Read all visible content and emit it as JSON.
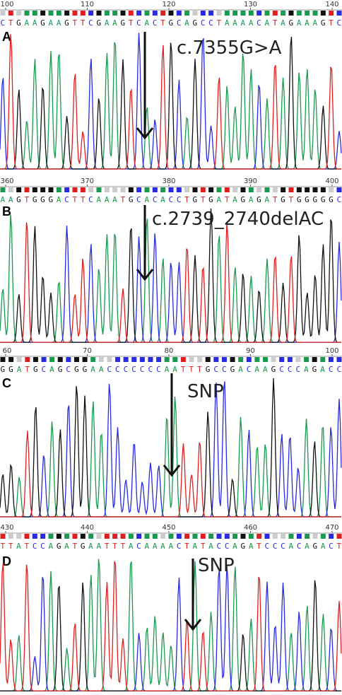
{
  "panels": [
    {
      "label": "A",
      "annotation": "c.7355G>A",
      "ruler_ticks": [
        100,
        110,
        120,
        130,
        140
      ],
      "sequence": "CTGAAGAAGTTCGAAGTCACTGCAGCCTAAAACATAGAAAGTC"
    },
    {
      "label": "B",
      "annotation": "c.2739_2740delAC",
      "ruler_ticks": [
        360,
        370,
        380,
        390,
        400
      ],
      "sequence": "AAGTGGGACTTCAAATGCACACCTGTGATAGAGATGTGGGGGC"
    },
    {
      "label": "C",
      "annotation": "SNP",
      "ruler_ticks": [
        60,
        70,
        80,
        90,
        100
      ],
      "sequence": "GGATGCAGCGGAACCCCCCCAATTTGCCGACAAGCCCAGACC"
    },
    {
      "label": "D",
      "annotation": "SNP",
      "ruler_ticks": [
        430,
        440,
        450,
        460,
        470
      ],
      "sequence": "TTATCCAGATGAATTTACAAAACTATACCAGATCCCACAGACT"
    }
  ]
}
